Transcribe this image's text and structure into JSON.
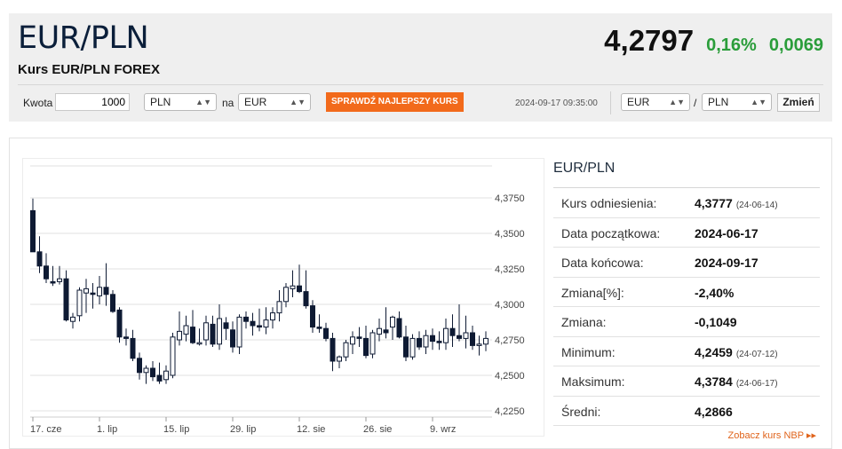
{
  "header": {
    "pair": "EUR/PLN",
    "subtitle": "Kurs EUR/PLN FOREX",
    "price": "4,2797",
    "change_pct": "0,16%",
    "change_abs": "0,0069"
  },
  "converter": {
    "amount_label": "Kwota",
    "amount_value": "1000",
    "from_currency": "PLN",
    "to_label": "na",
    "to_currency": "EUR",
    "cta_label": "SPRAWDŹ NAJLEPSZY KURS",
    "timestamp": "2024-09-17 09:35:00",
    "pair_base": "EUR",
    "pair_sep": "/",
    "pair_quote": "PLN",
    "change_button": "Zmień"
  },
  "info": {
    "title": "EUR/PLN",
    "rows": [
      {
        "label": "Kurs odniesienia:",
        "value": "4,3777",
        "date": "(24-06-14)"
      },
      {
        "label": "Data początkowa:",
        "value": "2024-06-17",
        "date": ""
      },
      {
        "label": "Data końcowa:",
        "value": "2024-09-17",
        "date": ""
      },
      {
        "label": "Zmiana[%]:",
        "value": "-2,40%",
        "date": ""
      },
      {
        "label": "Zmiana:",
        "value": "-0,1049",
        "date": ""
      },
      {
        "label": "Minimum:",
        "value": "4,2459",
        "date": "(24-07-12)"
      },
      {
        "label": "Maksimum:",
        "value": "4,3784",
        "date": "(24-06-17)"
      },
      {
        "label": "Średni:",
        "value": "4,2866",
        "date": ""
      }
    ],
    "nbp_link": "Zobacz kurs NBP ▸▸"
  },
  "colors": {
    "accent": "#f26a1b",
    "positive": "#2a9d3a",
    "candle_down": "#0e1a33",
    "candle_up": "#ffffff"
  },
  "chart_data": {
    "type": "candlestick",
    "ylim": [
      4.225,
      4.39
    ],
    "y_ticks": [
      "4,2250",
      "4,2500",
      "4,2750",
      "4,3000",
      "4,3250",
      "4,3500",
      "4,3750"
    ],
    "y_tick_values": [
      4.225,
      4.25,
      4.275,
      4.3,
      4.325,
      4.35,
      4.375
    ],
    "x_ticks": [
      {
        "label": "17. cze",
        "index": 0
      },
      {
        "label": "1. lip",
        "index": 10
      },
      {
        "label": "15. lip",
        "index": 20
      },
      {
        "label": "29. lip",
        "index": 30
      },
      {
        "label": "12. sie",
        "index": 40
      },
      {
        "label": "26. sie",
        "index": 50
      },
      {
        "label": "9. wrz",
        "index": 60
      }
    ],
    "candles": [
      {
        "o": 4.366,
        "h": 4.3745,
        "l": 4.338,
        "c": 4.337
      },
      {
        "o": 4.337,
        "h": 4.348,
        "l": 4.322,
        "c": 4.327
      },
      {
        "o": 4.327,
        "h": 4.336,
        "l": 4.315,
        "c": 4.318
      },
      {
        "o": 4.316,
        "h": 4.327,
        "l": 4.313,
        "c": 4.315
      },
      {
        "o": 4.316,
        "h": 4.327,
        "l": 4.314,
        "c": 4.318
      },
      {
        "o": 4.318,
        "h": 4.324,
        "l": 4.288,
        "c": 4.289
      },
      {
        "o": 4.288,
        "h": 4.294,
        "l": 4.283,
        "c": 4.291
      },
      {
        "o": 4.292,
        "h": 4.312,
        "l": 4.288,
        "c": 4.31
      },
      {
        "o": 4.308,
        "h": 4.318,
        "l": 4.294,
        "c": 4.311
      },
      {
        "o": 4.308,
        "h": 4.315,
        "l": 4.297,
        "c": 4.307
      },
      {
        "o": 4.306,
        "h": 4.32,
        "l": 4.3,
        "c": 4.312
      },
      {
        "o": 4.312,
        "h": 4.329,
        "l": 4.299,
        "c": 4.307
      },
      {
        "o": 4.307,
        "h": 4.31,
        "l": 4.294,
        "c": 4.295
      },
      {
        "o": 4.296,
        "h": 4.298,
        "l": 4.273,
        "c": 4.277
      },
      {
        "o": 4.277,
        "h": 4.283,
        "l": 4.271,
        "c": 4.276
      },
      {
        "o": 4.276,
        "h": 4.282,
        "l": 4.26,
        "c": 4.262
      },
      {
        "o": 4.262,
        "h": 4.266,
        "l": 4.247,
        "c": 4.252
      },
      {
        "o": 4.252,
        "h": 4.257,
        "l": 4.244,
        "c": 4.255
      },
      {
        "o": 4.255,
        "h": 4.26,
        "l": 4.246,
        "c": 4.249
      },
      {
        "o": 4.25,
        "h": 4.259,
        "l": 4.244,
        "c": 4.246
      },
      {
        "o": 4.247,
        "h": 4.257,
        "l": 4.244,
        "c": 4.253
      },
      {
        "o": 4.25,
        "h": 4.28,
        "l": 4.248,
        "c": 4.277
      },
      {
        "o": 4.275,
        "h": 4.295,
        "l": 4.271,
        "c": 4.281
      },
      {
        "o": 4.279,
        "h": 4.292,
        "l": 4.274,
        "c": 4.285
      },
      {
        "o": 4.284,
        "h": 4.296,
        "l": 4.272,
        "c": 4.273
      },
      {
        "o": 4.273,
        "h": 4.283,
        "l": 4.271,
        "c": 4.273
      },
      {
        "o": 4.275,
        "h": 4.292,
        "l": 4.271,
        "c": 4.287
      },
      {
        "o": 4.286,
        "h": 4.292,
        "l": 4.27,
        "c": 4.272
      },
      {
        "o": 4.272,
        "h": 4.3,
        "l": 4.268,
        "c": 4.29
      },
      {
        "o": 4.287,
        "h": 4.291,
        "l": 4.275,
        "c": 4.283
      },
      {
        "o": 4.282,
        "h": 4.288,
        "l": 4.266,
        "c": 4.27
      },
      {
        "o": 4.27,
        "h": 4.293,
        "l": 4.265,
        "c": 4.291
      },
      {
        "o": 4.291,
        "h": 4.295,
        "l": 4.283,
        "c": 4.288
      },
      {
        "o": 4.288,
        "h": 4.294,
        "l": 4.278,
        "c": 4.285
      },
      {
        "o": 4.285,
        "h": 4.297,
        "l": 4.281,
        "c": 4.284
      },
      {
        "o": 4.284,
        "h": 4.298,
        "l": 4.279,
        "c": 4.289
      },
      {
        "o": 4.289,
        "h": 4.298,
        "l": 4.283,
        "c": 4.294
      },
      {
        "o": 4.294,
        "h": 4.31,
        "l": 4.288,
        "c": 4.302
      },
      {
        "o": 4.302,
        "h": 4.315,
        "l": 4.298,
        "c": 4.312
      },
      {
        "o": 4.311,
        "h": 4.324,
        "l": 4.305,
        "c": 4.313
      },
      {
        "o": 4.313,
        "h": 4.328,
        "l": 4.308,
        "c": 4.309
      },
      {
        "o": 4.309,
        "h": 4.324,
        "l": 4.297,
        "c": 4.299
      },
      {
        "o": 4.299,
        "h": 4.303,
        "l": 4.28,
        "c": 4.284
      },
      {
        "o": 4.284,
        "h": 4.293,
        "l": 4.28,
        "c": 4.283
      },
      {
        "o": 4.283,
        "h": 4.287,
        "l": 4.274,
        "c": 4.276
      },
      {
        "o": 4.276,
        "h": 4.28,
        "l": 4.253,
        "c": 4.26
      },
      {
        "o": 4.26,
        "h": 4.264,
        "l": 4.255,
        "c": 4.263
      },
      {
        "o": 4.263,
        "h": 4.275,
        "l": 4.26,
        "c": 4.273
      },
      {
        "o": 4.272,
        "h": 4.281,
        "l": 4.265,
        "c": 4.277
      },
      {
        "o": 4.277,
        "h": 4.284,
        "l": 4.27,
        "c": 4.276
      },
      {
        "o": 4.276,
        "h": 4.285,
        "l": 4.262,
        "c": 4.264
      },
      {
        "o": 4.265,
        "h": 4.282,
        "l": 4.262,
        "c": 4.28
      },
      {
        "o": 4.279,
        "h": 4.29,
        "l": 4.274,
        "c": 4.283
      },
      {
        "o": 4.282,
        "h": 4.298,
        "l": 4.276,
        "c": 4.28
      },
      {
        "o": 4.284,
        "h": 4.292,
        "l": 4.275,
        "c": 4.291
      },
      {
        "o": 4.29,
        "h": 4.295,
        "l": 4.276,
        "c": 4.277
      },
      {
        "o": 4.277,
        "h": 4.285,
        "l": 4.26,
        "c": 4.263
      },
      {
        "o": 4.263,
        "h": 4.279,
        "l": 4.261,
        "c": 4.276
      },
      {
        "o": 4.276,
        "h": 4.281,
        "l": 4.268,
        "c": 4.27
      },
      {
        "o": 4.27,
        "h": 4.282,
        "l": 4.265,
        "c": 4.278
      },
      {
        "o": 4.278,
        "h": 4.283,
        "l": 4.268,
        "c": 4.274
      },
      {
        "o": 4.274,
        "h": 4.281,
        "l": 4.268,
        "c": 4.273
      },
      {
        "o": 4.273,
        "h": 4.29,
        "l": 4.268,
        "c": 4.283
      },
      {
        "o": 4.283,
        "h": 4.293,
        "l": 4.27,
        "c": 4.278
      },
      {
        "o": 4.278,
        "h": 4.3,
        "l": 4.274,
        "c": 4.276
      },
      {
        "o": 4.276,
        "h": 4.292,
        "l": 4.269,
        "c": 4.28
      },
      {
        "o": 4.28,
        "h": 4.285,
        "l": 4.268,
        "c": 4.271
      },
      {
        "o": 4.271,
        "h": 4.278,
        "l": 4.264,
        "c": 4.272
      },
      {
        "o": 4.272,
        "h": 4.281,
        "l": 4.267,
        "c": 4.276
      }
    ]
  }
}
